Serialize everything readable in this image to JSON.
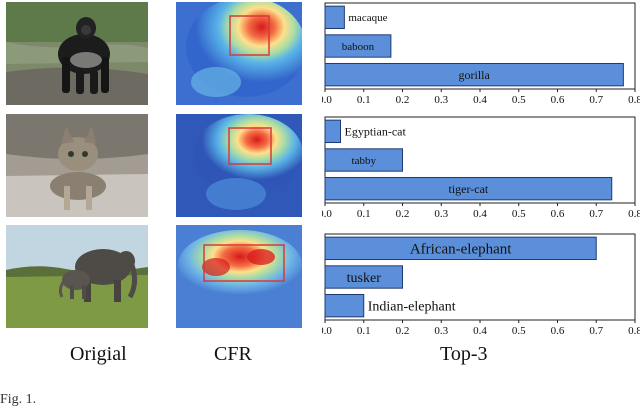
{
  "labels": {
    "original": "Origial",
    "cfr": "CFR",
    "top3": "Top-3"
  },
  "caption": "Fig. 1.",
  "colors": {
    "bar_fill": "#5b8fd9",
    "bar_stroke": "#1f3a73",
    "box": "#d63a3a"
  },
  "chart_data": [
    {
      "type": "bar",
      "orientation": "horizontal",
      "categories": [
        "macaque",
        "baboon",
        "gorilla"
      ],
      "values": [
        0.05,
        0.17,
        0.77
      ],
      "xlim": [
        0,
        0.8
      ],
      "ticks": [
        "0.0",
        "0.1",
        "0.2",
        "0.3",
        "0.4",
        "0.5",
        "0.6",
        "0.7",
        "0.8"
      ],
      "label_size": [
        11,
        11,
        12
      ]
    },
    {
      "type": "bar",
      "orientation": "horizontal",
      "categories": [
        "Egyptian-cat",
        "tabby",
        "tiger-cat"
      ],
      "values": [
        0.04,
        0.2,
        0.74
      ],
      "xlim": [
        0,
        0.8
      ],
      "ticks": [
        "0.0",
        "0.1",
        "0.2",
        "0.3",
        "0.4",
        "0.5",
        "0.6",
        "0.7",
        "0.8"
      ],
      "label_size": [
        12,
        11,
        12
      ]
    },
    {
      "type": "bar",
      "orientation": "horizontal",
      "categories": [
        "African-elephant",
        "tusker",
        "Indian-elephant"
      ],
      "values": [
        0.7,
        0.2,
        0.1
      ],
      "xlim": [
        0,
        0.8
      ],
      "ticks": [
        "0.0",
        "0.1",
        "0.2",
        "0.3",
        "0.4",
        "0.5",
        "0.6",
        "0.7",
        "0.8"
      ],
      "label_size": [
        15,
        14,
        14
      ]
    }
  ]
}
